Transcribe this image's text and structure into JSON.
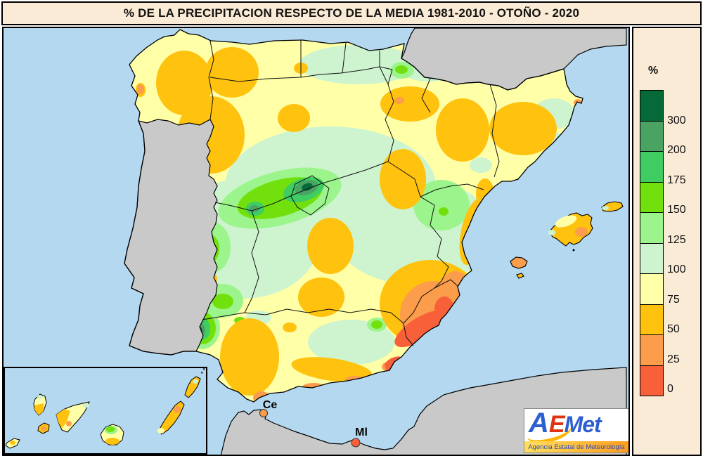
{
  "title": "% DE LA PRECIPITACION RESPECTO DE LA MEDIA 1981-2010 - OTOÑO - 2020",
  "legend": {
    "unit": "%",
    "items": [
      {
        "value": "300",
        "color": "#066a38"
      },
      {
        "value": "200",
        "color": "#4aa263"
      },
      {
        "value": "175",
        "color": "#3ecc63"
      },
      {
        "value": "150",
        "color": "#72e00d"
      },
      {
        "value": "125",
        "color": "#9cf58c"
      },
      {
        "value": "100",
        "color": "#cdf4cf"
      },
      {
        "value": "75",
        "color": "#ffffa8"
      },
      {
        "value": "50",
        "color": "#ffc20e"
      },
      {
        "value": "25",
        "color": "#fb9d4b"
      },
      {
        "value": "0",
        "color": "#f8603a"
      }
    ]
  },
  "map": {
    "labels": {
      "ceuta": "Ce",
      "melilla": "Ml"
    },
    "colors": {
      "sea": "#b4d8f0",
      "no_data_land": "#c9c9c9",
      "base_spain": "#ffffa8",
      "border": "#000000",
      "panel_background": "#faebd7"
    }
  },
  "logo": {
    "name_parts": [
      {
        "text": "A",
        "color": "#2e5fd0"
      },
      {
        "text": "E",
        "color": "#e03312"
      },
      {
        "text": "Met",
        "color": "#2e5fd0"
      }
    ],
    "tagline": "Agencia Estatal de Meteorología"
  }
}
